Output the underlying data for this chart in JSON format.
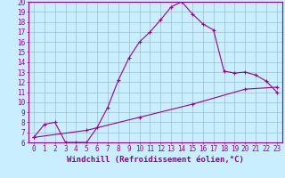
{
  "xlabel": "Windchill (Refroidissement éolien,°C)",
  "xlim": [
    -0.5,
    23.5
  ],
  "ylim": [
    6,
    20
  ],
  "xticks": [
    0,
    1,
    2,
    3,
    4,
    5,
    6,
    7,
    8,
    9,
    10,
    11,
    12,
    13,
    14,
    15,
    16,
    17,
    18,
    19,
    20,
    21,
    22,
    23
  ],
  "yticks": [
    6,
    7,
    8,
    9,
    10,
    11,
    12,
    13,
    14,
    15,
    16,
    17,
    18,
    19,
    20
  ],
  "line1_x": [
    0,
    1,
    2,
    3,
    4,
    5,
    6,
    7,
    8,
    9,
    10,
    11,
    12,
    13,
    14,
    15,
    16,
    17,
    18,
    19,
    20,
    21,
    22,
    23
  ],
  "line1_y": [
    6.5,
    7.8,
    8.0,
    6.0,
    6.0,
    6.0,
    7.5,
    9.5,
    12.2,
    14.4,
    16.0,
    17.0,
    18.2,
    19.5,
    20.0,
    18.8,
    17.8,
    17.2,
    13.1,
    12.9,
    13.0,
    12.7,
    12.1,
    11.0
  ],
  "line2_x": [
    0,
    5,
    10,
    15,
    20,
    23
  ],
  "line2_y": [
    6.5,
    7.2,
    8.5,
    9.8,
    11.3,
    11.5
  ],
  "line_color": "#990099",
  "bg_color": "#c8eeff",
  "grid_color": "#9bbfcc",
  "tick_label_fontsize": 5.5,
  "xlabel_fontsize": 6.5
}
